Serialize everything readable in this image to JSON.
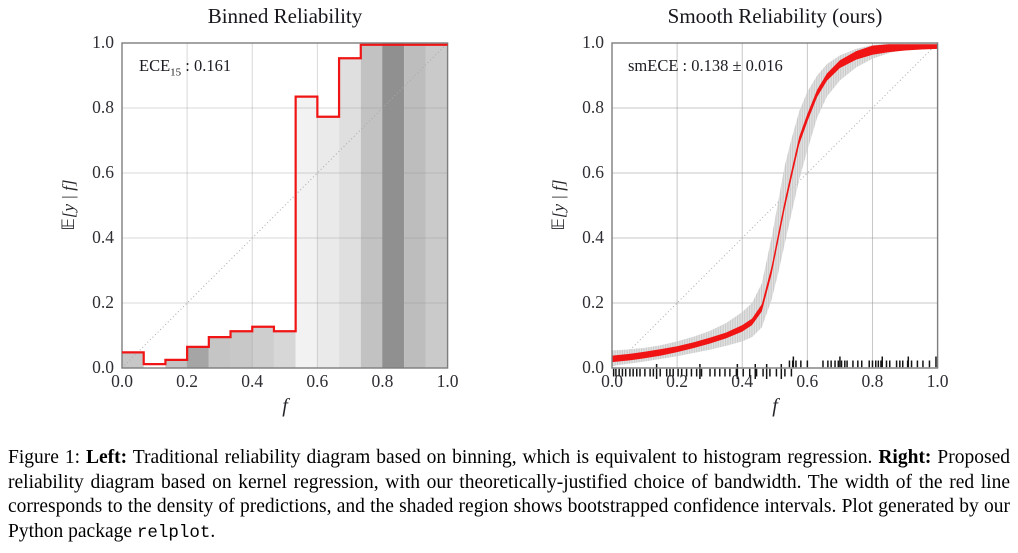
{
  "caption": {
    "prefix": "Figure 1: ",
    "left_label": "Left:",
    "left_text": " Traditional reliability diagram based on binning, which is equivalent to histogram regression. ",
    "right_label": "Right:",
    "right_text": " Proposed reliability diagram based on kernel regression, with our theoretically-justified choice of bandwidth. The width of the red line corresponds to the density of predictions, and the shaded region shows bootstrapped confidence intervals. Plot generated by our Python package ",
    "package_name": "relplot",
    "suffix": "."
  },
  "chart_data": [
    {
      "id": "binned_reliability",
      "type": "bar",
      "title": "Binned Reliability",
      "annotation": {
        "base": "ECE",
        "subscript": "15",
        "rest": " : 0.161",
        "text": "ECE15 : 0.161"
      },
      "xlabel": "f",
      "ylabel": "𝔼[y | f]",
      "xlim": [
        0,
        1
      ],
      "ylim": [
        0,
        1
      ],
      "xticks": [
        "0.0",
        "0.2",
        "0.4",
        "0.6",
        "0.8",
        "1.0"
      ],
      "yticks": [
        "0.0",
        "0.2",
        "0.4",
        "0.6",
        "0.8",
        "1.0"
      ],
      "grid": true,
      "diagonal_reference": true,
      "n_bins": 15,
      "bin_values": [
        0.048,
        0.012,
        0.025,
        0.065,
        0.095,
        0.113,
        0.127,
        0.113,
        0.835,
        0.773,
        0.953,
        1.0,
        1.0,
        1.0,
        1.0
      ],
      "bin_density_shades": [
        "#c7c7c7",
        "#ffffff",
        "#c3c3c3",
        "#a5a5a5",
        "#c5c5c5",
        "#c8c8c8",
        "#cecece",
        "#d7d7d7",
        "#f2f2f2",
        "#eaeaea",
        "#dfdfdf",
        "#c2c2c2",
        "#909090",
        "#bdbdbd",
        "#cacaca"
      ],
      "line_color": "#f01414"
    },
    {
      "id": "smooth_reliability",
      "type": "line",
      "title": "Smooth Reliability (ours)",
      "annotation": {
        "text": "smECE : 0.138 ± 0.016"
      },
      "xlabel": "f",
      "ylabel": "𝔼[y | f]",
      "xlim": [
        0,
        1
      ],
      "ylim": [
        0,
        1
      ],
      "xticks": [
        "0.0",
        "0.2",
        "0.4",
        "0.6",
        "0.8",
        "1.0"
      ],
      "yticks": [
        "0.0",
        "0.2",
        "0.4",
        "0.6",
        "0.8",
        "1.0"
      ],
      "grid": true,
      "diagonal_reference": true,
      "x": [
        0,
        0.05,
        0.1,
        0.15,
        0.2,
        0.25,
        0.3,
        0.35,
        0.4,
        0.43,
        0.46,
        0.49,
        0.51,
        0.53,
        0.55,
        0.575,
        0.6,
        0.63,
        0.66,
        0.7,
        0.75,
        0.8,
        0.85,
        0.9,
        0.95,
        1.0
      ],
      "y": [
        0.028,
        0.033,
        0.04,
        0.048,
        0.058,
        0.07,
        0.084,
        0.1,
        0.122,
        0.142,
        0.185,
        0.3,
        0.4,
        0.5,
        0.59,
        0.7,
        0.77,
        0.845,
        0.895,
        0.935,
        0.962,
        0.978,
        0.988,
        0.994,
        0.998,
        1.0
      ],
      "line_halfwidth": [
        0.01,
        0.01,
        0.01,
        0.01,
        0.009,
        0.009,
        0.009,
        0.009,
        0.01,
        0.01,
        0.011,
        0.012,
        0.012,
        0.012,
        0.012,
        0.012,
        0.012,
        0.011,
        0.011,
        0.012,
        0.013,
        0.014,
        0.016,
        0.017,
        0.018,
        0.018
      ],
      "band_lo": [
        0.006,
        0.013,
        0.02,
        0.028,
        0.036,
        0.046,
        0.056,
        0.068,
        0.082,
        0.095,
        0.125,
        0.21,
        0.29,
        0.38,
        0.47,
        0.58,
        0.67,
        0.77,
        0.835,
        0.885,
        0.925,
        0.952,
        0.969,
        0.981,
        0.99,
        0.995
      ],
      "band_hi": [
        0.054,
        0.057,
        0.062,
        0.07,
        0.082,
        0.096,
        0.114,
        0.138,
        0.172,
        0.2,
        0.26,
        0.4,
        0.51,
        0.62,
        0.7,
        0.79,
        0.85,
        0.9,
        0.935,
        0.962,
        0.982,
        0.994,
        1.0,
        1.0,
        1.0,
        1.0
      ],
      "line_color": "#f01414",
      "band_color": "#d6d6d6",
      "rug_bottom": [
        0.005,
        0.012,
        0.022,
        0.032,
        0.042,
        0.055,
        0.065,
        0.076,
        0.086,
        0.101,
        0.117,
        0.127,
        0.148,
        0.168,
        0.178,
        0.188,
        0.203,
        0.214,
        0.229,
        0.244,
        0.26,
        0.275,
        0.301,
        0.316,
        0.331,
        0.347,
        0.362,
        0.382,
        0.403,
        0.423,
        0.444,
        0.464,
        0.485,
        0.505,
        0.531,
        0.551
      ],
      "rug_bottom_tall": [
        0.137,
        0.27,
        0.385,
        0.44,
        0.475,
        0.52
      ],
      "rug_top": [
        0.545,
        0.555,
        0.565,
        0.58,
        0.6,
        0.648,
        0.663,
        0.673,
        0.685,
        0.695,
        0.705,
        0.715,
        0.722,
        0.74,
        0.755,
        0.767,
        0.79,
        0.8,
        0.81,
        0.818,
        0.826,
        0.843,
        0.853,
        0.874,
        0.884,
        0.893,
        0.908,
        0.92,
        0.938,
        0.955,
        0.975
      ],
      "rug_top_tall": [
        0.557,
        0.7,
        0.83,
        0.91,
        0.995
      ]
    }
  ]
}
